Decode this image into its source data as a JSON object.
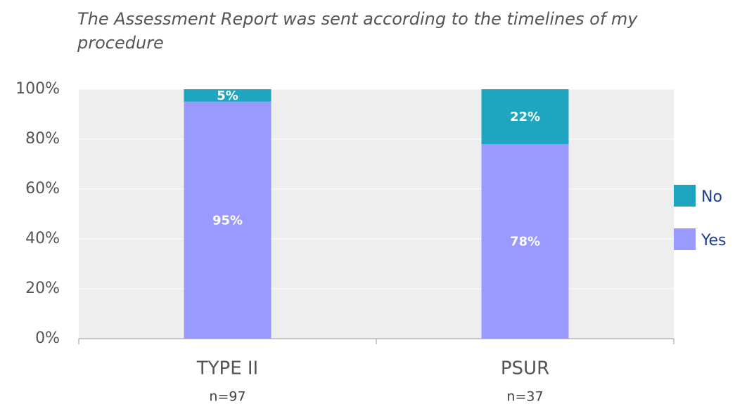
{
  "chart_data": {
    "type": "stacked_bar",
    "title": "The Assessment Report was sent according to the timelines of my procedure",
    "categories": [
      "TYPE II",
      "PSUR"
    ],
    "category_notes": [
      "n=97",
      "n=37"
    ],
    "series": [
      {
        "name": "Yes",
        "color": "#9999ff",
        "values": [
          95,
          78
        ],
        "value_labels": [
          "95%",
          "78%"
        ]
      },
      {
        "name": "No",
        "color": "#1fa5bf",
        "values": [
          5,
          22
        ],
        "value_labels": [
          "5%",
          "22%"
        ]
      }
    ],
    "ylim": [
      0,
      100
    ],
    "yticks": [
      {
        "value": 0,
        "label": "0%"
      },
      {
        "value": 20,
        "label": "20%"
      },
      {
        "value": 40,
        "label": "40%"
      },
      {
        "value": 60,
        "label": "60%"
      },
      {
        "value": 80,
        "label": "80%"
      },
      {
        "value": 100,
        "label": "100%"
      }
    ],
    "grid": true,
    "legend": "right"
  }
}
